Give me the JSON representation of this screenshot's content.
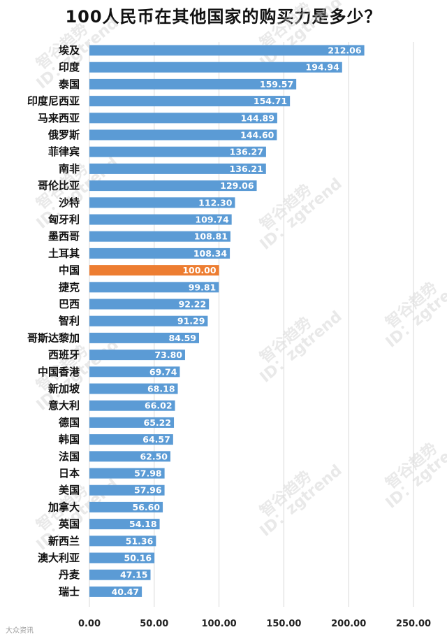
{
  "title": "100人民币在其他国家的购买力是多少？",
  "watermark": {
    "brand": "智谷趋势",
    "id": "ID：zgtrend"
  },
  "source_tag": "大众资讯",
  "colors": {
    "bar": "#5b9bd5",
    "highlight": "#ed7d31",
    "grid": "#d9d9d9"
  },
  "chart_data": {
    "type": "bar",
    "orientation": "horizontal",
    "title": "100人民币在其他国家的购买力是多少？",
    "xlabel": "",
    "ylabel": "",
    "xlim": [
      0,
      250
    ],
    "xticks": [
      "0.00",
      "50.00",
      "100.00",
      "150.00",
      "200.00",
      "250.00"
    ],
    "grid": true,
    "highlight_category": "中国",
    "categories": [
      "埃及",
      "印度",
      "泰国",
      "印度尼西亚",
      "马来西亚",
      "俄罗斯",
      "菲律宾",
      "南非",
      "哥伦比亚",
      "沙特",
      "匈牙利",
      "墨西哥",
      "土耳其",
      "中国",
      "捷克",
      "巴西",
      "智利",
      "哥斯达黎加",
      "西班牙",
      "中国香港",
      "新加坡",
      "意大利",
      "德国",
      "韩国",
      "法国",
      "日本",
      "美国",
      "加拿大",
      "英国",
      "新西兰",
      "澳大利亚",
      "丹麦",
      "瑞士"
    ],
    "values": [
      212.06,
      194.94,
      159.57,
      154.71,
      144.89,
      144.6,
      136.27,
      136.21,
      129.06,
      112.3,
      109.74,
      108.81,
      108.34,
      100.0,
      99.81,
      92.22,
      91.29,
      84.59,
      73.8,
      69.74,
      68.18,
      66.02,
      65.22,
      64.57,
      62.5,
      57.98,
      57.96,
      56.6,
      54.18,
      51.36,
      50.16,
      47.15,
      40.47
    ],
    "value_labels": [
      "212.06",
      "194.94",
      "159.57",
      "154.71",
      "144.89",
      "144.60",
      "136.27",
      "136.21",
      "129.06",
      "112.30",
      "109.74",
      "108.81",
      "108.34",
      "100.00",
      "99.81",
      "92.22",
      "91.29",
      "84.59",
      "73.80",
      "69.74",
      "68.18",
      "66.02",
      "65.22",
      "64.57",
      "62.50",
      "57.98",
      "57.96",
      "56.60",
      "54.18",
      "51.36",
      "50.16",
      "47.15",
      "40.47"
    ]
  }
}
